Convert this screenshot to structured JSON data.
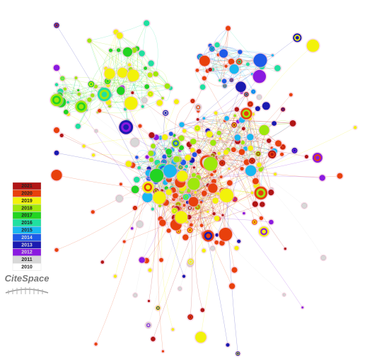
{
  "legend": {
    "items": [
      {
        "label": "2021",
        "color": "#b01515"
      },
      {
        "label": "2020",
        "color": "#e8400c"
      },
      {
        "label": "2019",
        "color": "#f2f20a"
      },
      {
        "label": "2018",
        "color": "#9ee80c"
      },
      {
        "label": "2017",
        "color": "#22d422"
      },
      {
        "label": "2016",
        "color": "#20e0a0"
      },
      {
        "label": "2015",
        "color": "#18b8f0"
      },
      {
        "label": "2014",
        "color": "#1e5ae8"
      },
      {
        "label": "2013",
        "color": "#1a1ab0"
      },
      {
        "label": "2012",
        "color": "#8a1ae0"
      },
      {
        "label": "2011",
        "color": "#d8d8d8"
      },
      {
        "label": "2010",
        "color": "#ffffff"
      }
    ]
  },
  "logo": "CiteSpace"
}
